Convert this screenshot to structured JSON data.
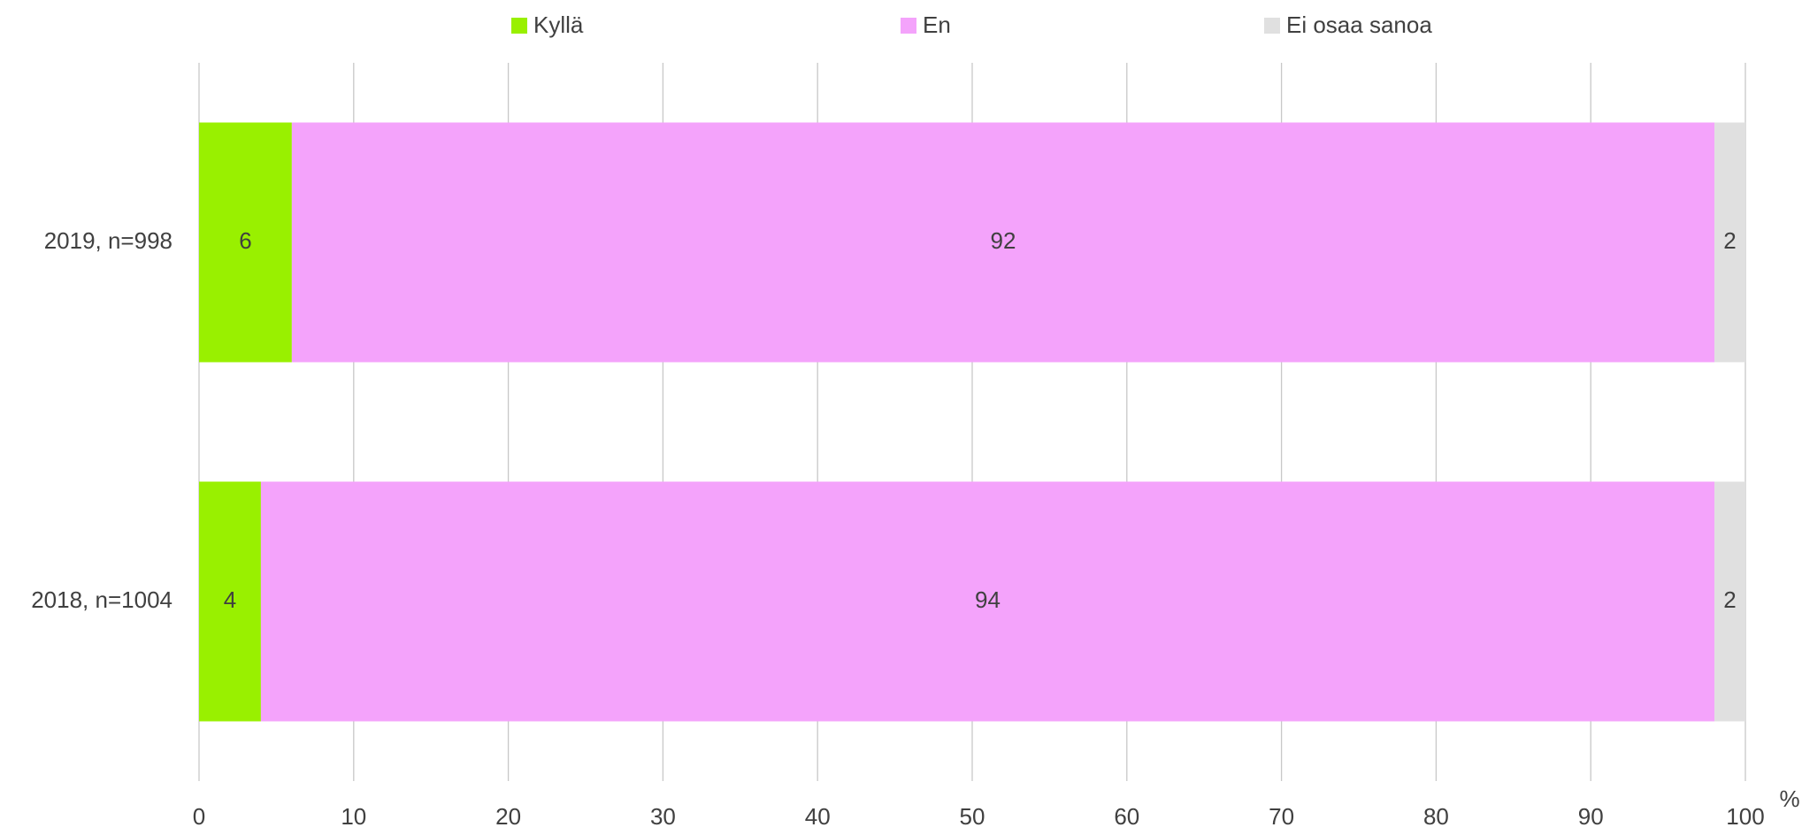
{
  "chart_data": {
    "type": "stacked_barh",
    "categories": [
      "2019, n=998",
      "2018, n=1004"
    ],
    "series": [
      {
        "name": "Kyllä",
        "color": "#99f000",
        "values": [
          6,
          4
        ]
      },
      {
        "name": "En",
        "color": "#f4a3fb",
        "values": [
          92,
          94
        ]
      },
      {
        "name": "Ei osaa sanoa",
        "color": "#e0e0e0",
        "values": [
          2,
          2
        ]
      }
    ],
    "xlabel": "%",
    "xlim": [
      0,
      100
    ],
    "xticks": [
      0,
      10,
      20,
      30,
      40,
      50,
      60,
      70,
      80,
      90,
      100
    ],
    "grid": true,
    "legend": "top",
    "data_labels": true
  }
}
